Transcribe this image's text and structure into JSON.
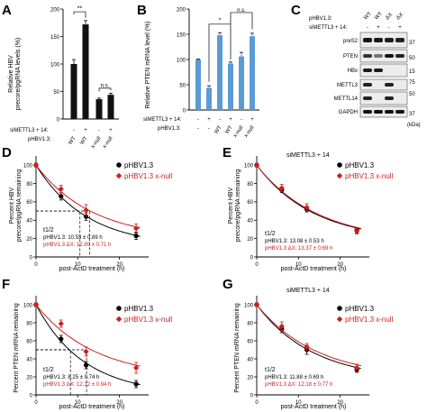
{
  "panels": {
    "A": {
      "letter": "A",
      "ylabel_1": "Relative HBV",
      "ylabel_2": "precore/pgRNA levels (%)",
      "row1_label": "siMETTL3 + 14:",
      "row2_label": "pHBV1.3:",
      "row1_signs": [
        "-",
        "+",
        "-",
        "+"
      ],
      "row2_labels": [
        "WT",
        "WT",
        "x-null",
        "x-null"
      ],
      "sig1": "**",
      "sig2": "n.s."
    },
    "B": {
      "letter": "B",
      "ylabel_1": "Relative PTEN mRNA level (%)",
      "row1_label": "siMETTL3 + 14:",
      "row2_label": "pHBV1.3:",
      "row1_signs": [
        "-",
        "+",
        "-",
        "+",
        "-",
        "+"
      ],
      "row2_labels": [
        "-",
        "-",
        "WT",
        "WT",
        "x-null",
        "x-null"
      ],
      "sig1": "*",
      "sig2": "n.s."
    },
    "C": {
      "letter": "C",
      "row1_label": "pHBV1.3:",
      "row2_label": "siMETTL3 + 14:",
      "col_labels": [
        "WT",
        "WT",
        "ΔX",
        "ΔX"
      ],
      "row2_signs": [
        "-",
        "+",
        "-",
        "+"
      ],
      "bands": [
        "preS2",
        "PTEN",
        "HBx",
        "METTL3",
        "METTL14",
        "GAPDH"
      ],
      "mw": [
        "37",
        "50",
        "15",
        "75",
        "50",
        "37"
      ],
      "kda": "(kDa)"
    },
    "D": {
      "letter": "D",
      "ylabel_1": "Percent HBV",
      "ylabel_2": "precore/pgRNA remaining",
      "xlabel": "post-ActD treatment (h)",
      "legend": [
        "pHBV1.3",
        "pHBV1.3 x-null"
      ],
      "thalf_label": "t1/2",
      "thalf_lines": [
        "pHBV1.3: 10.53 ± 0.89 h",
        "pHBV1.3 ΔX: 12.89 ± 0.71 h"
      ]
    },
    "E": {
      "letter": "E",
      "title": "siMETTL3 + 14",
      "ylabel_1": "Percent HBV",
      "ylabel_2": "precore/pgRNA remaining",
      "xlabel": "post-ActD treatment (h)",
      "legend": [
        "pHBV1.3",
        "pHBV1.3 x-null"
      ],
      "thalf_label": "t1/2",
      "thalf_lines": [
        "pHBV1.3: 13.08 ± 0.53 h",
        "pHBV1.3 ΔX: 13.37 ± 0.69 h"
      ]
    },
    "F": {
      "letter": "F",
      "ylabel_1": "Percent PTEN mRNA remaining",
      "xlabel": "post-ActD treatment (h)",
      "legend": [
        "pHBV1.3",
        "pHBV1.3 x-null"
      ],
      "thalf_label": "t1/2",
      "thalf_lines": [
        "pHBV1.3: 8.25 ± 0.74 h",
        "pHBV1.3 ΔX: 12.12 ± 0.94 h"
      ]
    },
    "G": {
      "letter": "G",
      "title": "siMETTL3 + 14",
      "ylabel_1": "Percent PTEN mRNA remaining",
      "xlabel": "post-ActD treatment (h)",
      "legend": [
        "pHBV1.3",
        "pHBV1.3 x-null"
      ],
      "thalf_label": "t1/2",
      "thalf_lines": [
        "pHBV1.3: 11.88 ± 0.69 h",
        "pHBV1.3 ΔX: 12.18 ± 0.77 h"
      ]
    }
  },
  "colors": {
    "wt": "#000000",
    "xnull": "#cc1f1f",
    "barA": "#111111",
    "barB": "#5b9bd5"
  },
  "chart_data": [
    {
      "id": "A",
      "type": "bar",
      "ylim": [
        0,
        200
      ],
      "yticks": [
        0,
        50,
        100,
        150,
        200
      ],
      "values": [
        100,
        172,
        36,
        44
      ],
      "errors": [
        8,
        7,
        2,
        3
      ]
    },
    {
      "id": "B",
      "type": "bar",
      "ylim": [
        0,
        200
      ],
      "yticks": [
        0,
        50,
        100,
        150,
        200
      ],
      "values": [
        100,
        44,
        148,
        92,
        106,
        146
      ],
      "errors": [
        1,
        4,
        5,
        3,
        8,
        6
      ]
    },
    {
      "id": "D",
      "type": "line",
      "xlim": [
        0,
        27
      ],
      "ylim": [
        0,
        110
      ],
      "xticks": [
        0,
        10,
        20
      ],
      "yticks": [
        0,
        20,
        40,
        60,
        80,
        100
      ],
      "x": [
        0,
        6,
        12,
        24
      ],
      "series": [
        {
          "name": "pHBV1.3",
          "values": [
            100,
            66,
            44,
            23
          ],
          "errors": [
            2,
            4,
            4,
            4
          ]
        },
        {
          "name": "pHBV1.3 x-null",
          "values": [
            100,
            74,
            51,
            31
          ],
          "errors": [
            2,
            4,
            6,
            5
          ]
        }
      ],
      "halflife_marks": [
        10.53,
        12.89
      ]
    },
    {
      "id": "E",
      "type": "line",
      "xlim": [
        0,
        27
      ],
      "ylim": [
        0,
        110
      ],
      "xticks": [
        0,
        10,
        20
      ],
      "yticks": [
        0,
        20,
        40,
        60,
        80,
        100
      ],
      "x": [
        0,
        6,
        12,
        24
      ],
      "series": [
        {
          "name": "pHBV1.3",
          "values": [
            100,
            73,
            52,
            29
          ],
          "errors": [
            2,
            3,
            3,
            3
          ]
        },
        {
          "name": "pHBV1.3 x-null",
          "values": [
            100,
            75,
            54,
            28
          ],
          "errors": [
            2,
            4,
            4,
            3
          ]
        }
      ]
    },
    {
      "id": "F",
      "type": "line",
      "xlim": [
        0,
        27
      ],
      "ylim": [
        0,
        110
      ],
      "xticks": [
        0,
        10,
        20
      ],
      "yticks": [
        0,
        20,
        40,
        60,
        80,
        100
      ],
      "x": [
        0,
        6,
        12,
        24
      ],
      "series": [
        {
          "name": "pHBV1.3",
          "values": [
            100,
            62,
            33,
            12
          ],
          "errors": [
            2,
            4,
            4,
            4
          ]
        },
        {
          "name": "pHBV1.3 x-null",
          "values": [
            100,
            79,
            48,
            30
          ],
          "errors": [
            2,
            4,
            5,
            6
          ]
        }
      ],
      "halflife_marks": [
        8.25,
        12.12
      ]
    },
    {
      "id": "G",
      "type": "line",
      "xlim": [
        0,
        27
      ],
      "ylim": [
        0,
        110
      ],
      "xticks": [
        0,
        10,
        20
      ],
      "yticks": [
        0,
        20,
        40,
        60,
        80,
        100
      ],
      "x": [
        0,
        6,
        12,
        24
      ],
      "series": [
        {
          "name": "pHBV1.3",
          "values": [
            100,
            73,
            50,
            28
          ],
          "errors": [
            2,
            4,
            5,
            3
          ]
        },
        {
          "name": "pHBV1.3 x-null",
          "values": [
            100,
            76,
            53,
            30
          ],
          "errors": [
            2,
            5,
            4,
            4
          ]
        }
      ]
    }
  ]
}
